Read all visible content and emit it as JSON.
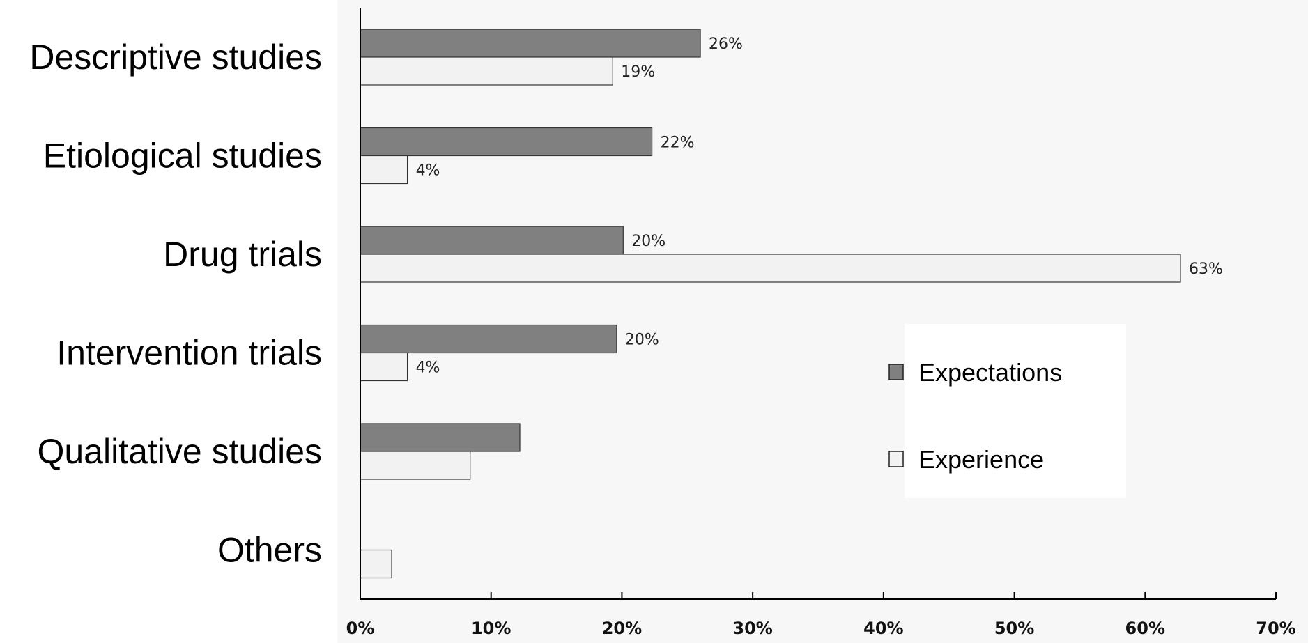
{
  "chart_data": {
    "type": "bar",
    "orientation": "horizontal",
    "categories": [
      "Descriptive studies",
      "Etiological studies",
      "Drug trials",
      "Intervention trials",
      "Qualitative studies",
      "Others"
    ],
    "series": [
      {
        "name": "Expectations",
        "color": "#808080",
        "values": [
          26,
          22.3,
          20.1,
          19.6,
          12.2,
          0
        ],
        "labels": [
          "26%",
          "22%",
          "20%",
          "20%",
          "",
          ""
        ]
      },
      {
        "name": "Experience",
        "color": "#f2f2f2",
        "values": [
          19.3,
          3.6,
          62.7,
          3.6,
          8.4,
          2.4
        ],
        "labels": [
          "19%",
          "4%",
          "63%",
          "4%",
          "",
          ""
        ]
      }
    ],
    "xlim": [
      0,
      70
    ],
    "xticks": [
      0,
      10,
      20,
      30,
      40,
      50,
      60,
      70
    ],
    "xtick_labels": [
      "0%",
      "10%",
      "20%",
      "30%",
      "40%",
      "50%",
      "60%",
      "70%"
    ],
    "title": "",
    "xlabel": "",
    "ylabel": "",
    "grid": false,
    "legend_position": "center-right"
  }
}
